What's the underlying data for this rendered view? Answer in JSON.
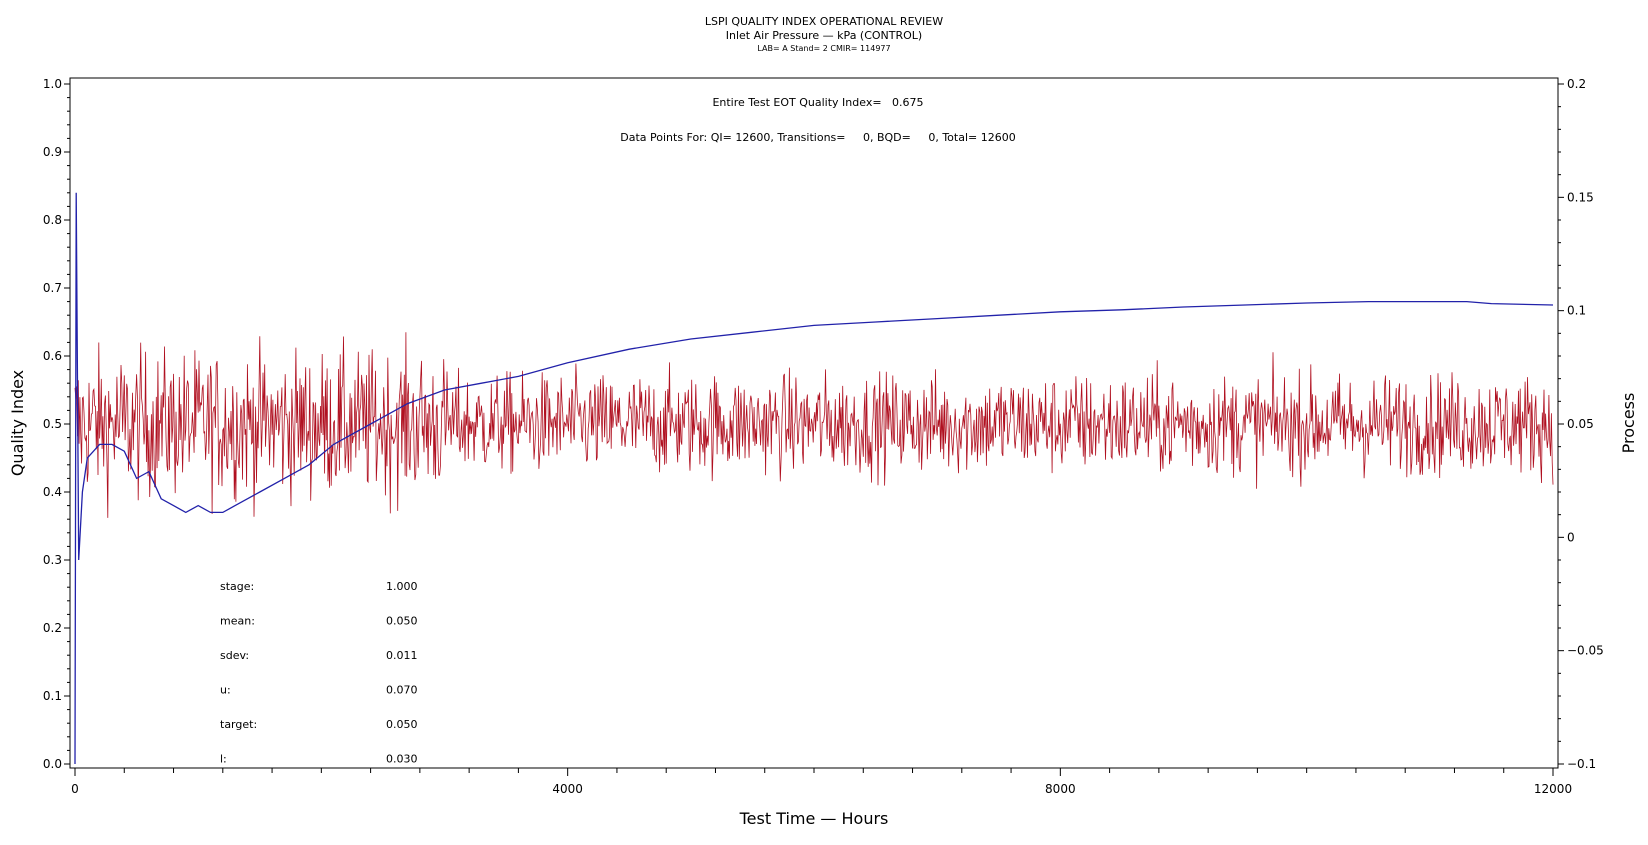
{
  "chart_data": {
    "type": "line",
    "title": "LSPI QUALITY INDEX OPERATIONAL REVIEW",
    "subtitle": "Inlet Air Pressure — kPa (CONTROL)",
    "subsubtitle": "LAB= A Stand= 2 CMIR= 114977",
    "annotation1": "Entire Test EOT Quality Index=   0.675",
    "annotation2": "Data Points For: QI= 12600, Transitions=     0, BQD=     0, Total= 12600",
    "xlabel": "Test Time — Hours",
    "ylabel": "Quality Index",
    "y2label": "Process",
    "xlim": [
      0,
      12000
    ],
    "ylim": [
      0.0,
      1.0
    ],
    "y2lim": [
      -0.1,
      0.2
    ],
    "xticks": [
      "0",
      "4000",
      "8000",
      "12000"
    ],
    "yticks": [
      "0.0",
      "0.1",
      "0.2",
      "0.3",
      "0.4",
      "0.5",
      "0.6",
      "0.7",
      "0.8",
      "0.9",
      "1.0"
    ],
    "y2ticks": [
      "−0.1",
      "−0.05",
      "0",
      "0.05",
      "0.1",
      "0.15",
      "0.2"
    ],
    "series": [
      {
        "axis": "left",
        "color": "#2222aa",
        "x": [
          0,
          10,
          30,
          60,
          100,
          150,
          200,
          300,
          400,
          500,
          600,
          700,
          800,
          900,
          1000,
          1100,
          1200,
          1300,
          1400,
          1500,
          1700,
          1900,
          2100,
          2400,
          2700,
          3000,
          3300,
          3600,
          4000,
          4500,
          5000,
          5500,
          6000,
          6500,
          7000,
          7500,
          8000,
          8500,
          9000,
          9500,
          10000,
          10500,
          11000,
          11300,
          11500,
          12000
        ],
        "y": [
          0.0,
          0.84,
          0.3,
          0.4,
          0.45,
          0.46,
          0.47,
          0.47,
          0.46,
          0.42,
          0.43,
          0.39,
          0.38,
          0.37,
          0.38,
          0.37,
          0.37,
          0.38,
          0.39,
          0.4,
          0.42,
          0.44,
          0.47,
          0.5,
          0.53,
          0.55,
          0.56,
          0.57,
          0.59,
          0.61,
          0.625,
          0.635,
          0.645,
          0.65,
          0.655,
          0.66,
          0.665,
          0.668,
          0.672,
          0.675,
          0.678,
          0.68,
          0.68,
          0.68,
          0.677,
          0.675
        ]
      },
      {
        "axis": "right",
        "color": "#b01020",
        "mean": 0.05,
        "sdev": 0.011,
        "x_range": [
          0,
          12000
        ]
      }
    ]
  },
  "stats": [
    {
      "label": "stage:",
      "value": "1.000"
    },
    {
      "label": "mean:",
      "value": "0.050"
    },
    {
      "label": "sdev:",
      "value": "0.011"
    },
    {
      "label": "u:",
      "value": "0.070"
    },
    {
      "label": "target:",
      "value": "0.050"
    },
    {
      "label": "l:",
      "value": "0.030"
    }
  ]
}
